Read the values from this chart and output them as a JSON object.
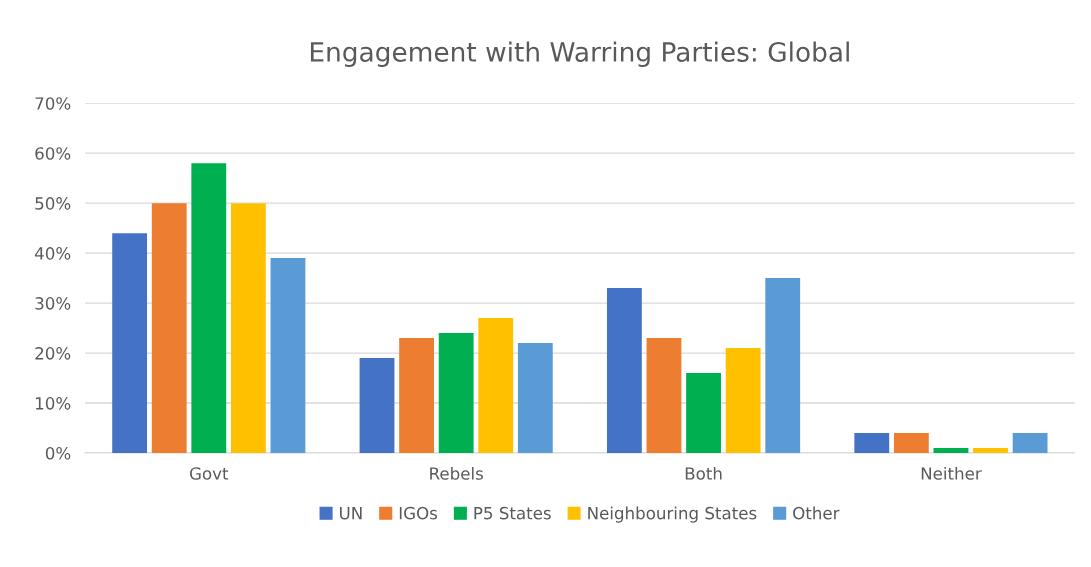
{
  "chart_data": {
    "type": "bar",
    "title": "Engagement with Warring Parties: Global",
    "categories": [
      "Govt",
      "Rebels",
      "Both",
      "Neither"
    ],
    "series": [
      {
        "name": "UN",
        "color": "#4472c4",
        "values": [
          44,
          19,
          33,
          4
        ]
      },
      {
        "name": "IGOs",
        "color": "#ed7d31",
        "values": [
          50,
          23,
          23,
          4
        ]
      },
      {
        "name": "P5 States",
        "color": "#00b050",
        "values": [
          58,
          24,
          16,
          1
        ]
      },
      {
        "name": "Neighbouring States",
        "color": "#ffc000",
        "values": [
          50,
          27,
          21,
          1
        ]
      },
      {
        "name": "Other",
        "color": "#5b9bd5",
        "values": [
          39,
          22,
          35,
          4
        ]
      }
    ],
    "ylim": [
      0,
      70
    ],
    "yticks": [
      {
        "value": 0,
        "label": "0%"
      },
      {
        "value": 10,
        "label": "10%"
      },
      {
        "value": 20,
        "label": "20%"
      },
      {
        "value": 30,
        "label": "30%"
      },
      {
        "value": 40,
        "label": "40%"
      },
      {
        "value": 50,
        "label": "50%"
      },
      {
        "value": 60,
        "label": "60%"
      },
      {
        "value": 70,
        "label": "70%"
      }
    ],
    "grid": "y",
    "legend": "bottom"
  }
}
